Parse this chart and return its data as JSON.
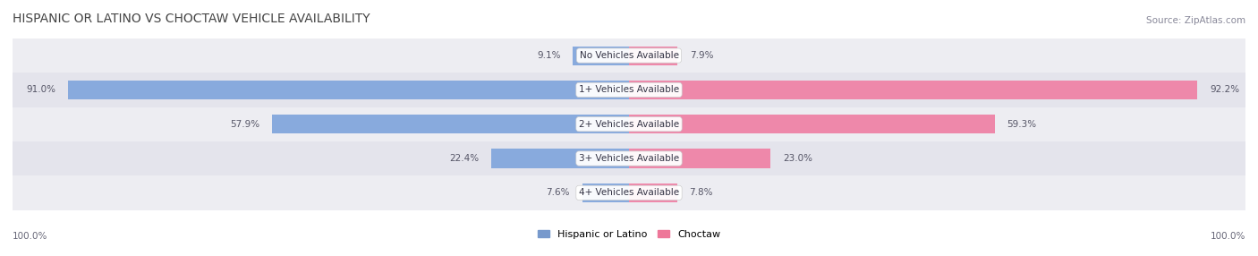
{
  "title": "HISPANIC OR LATINO VS CHOCTAW VEHICLE AVAILABILITY",
  "source": "Source: ZipAtlas.com",
  "categories": [
    "No Vehicles Available",
    "1+ Vehicles Available",
    "2+ Vehicles Available",
    "3+ Vehicles Available",
    "4+ Vehicles Available"
  ],
  "hispanic_values": [
    9.1,
    91.0,
    57.9,
    22.4,
    7.6
  ],
  "choctaw_values": [
    7.9,
    92.2,
    59.3,
    23.0,
    7.8
  ],
  "hispanic_color": "#88AADD",
  "choctaw_color": "#EE88AA",
  "hispanic_color_legend": "#7799CC",
  "choctaw_color_legend": "#EE7799",
  "row_bg_colors": [
    "#EDEDF2",
    "#E4E4EC"
  ],
  "label_color": "#555566",
  "title_color": "#444444",
  "source_color": "#888899",
  "axis_label_color": "#666677",
  "max_value": 100.0,
  "bar_height": 0.55,
  "figsize": [
    14.06,
    2.86
  ],
  "dpi": 100
}
